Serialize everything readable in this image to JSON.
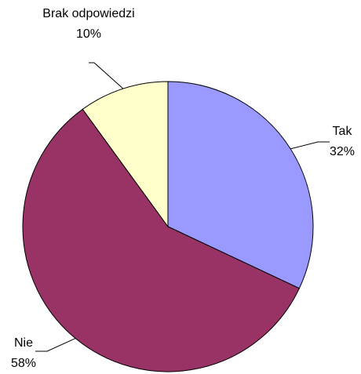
{
  "chart_data": {
    "type": "pie",
    "categories": [
      "Tak",
      "Nie",
      "Brak odpowiedzi"
    ],
    "values": [
      32,
      58,
      10
    ],
    "value_labels": [
      "32%",
      "58%",
      "10%"
    ],
    "colors": [
      "#9999ff",
      "#993366",
      "#ffffcc"
    ]
  }
}
